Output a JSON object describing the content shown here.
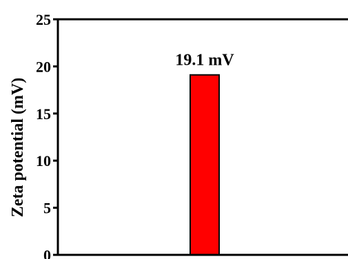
{
  "chart_data": {
    "type": "bar",
    "title": "",
    "xlabel": "",
    "ylabel": "Zeta potential (mV)",
    "ylim": [
      0,
      25
    ],
    "yticks": [
      0,
      5,
      10,
      15,
      20,
      25
    ],
    "categories": [
      ""
    ],
    "values": [
      19.1
    ],
    "data_labels": [
      "19.1 mV"
    ],
    "grid": false,
    "legend": "none",
    "colors": {
      "bar_fill": "#ff0000",
      "bar_stroke": "#000000",
      "axis": "#000000"
    }
  }
}
